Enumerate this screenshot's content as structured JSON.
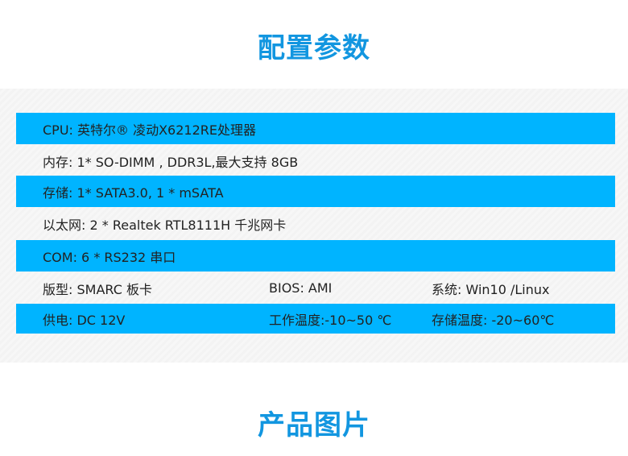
{
  "section_title": "配置参数",
  "next_section_title": "产品图片",
  "accent_color": "#00b4ff",
  "title_color": "#1296e0",
  "specs": [
    {
      "cells": [
        "CPU:  英特尔® 凌动X6212RE处理器"
      ]
    },
    {
      "cells": [
        "内存:  1* SO-DIMM , DDR3L,最大支持 8GB"
      ]
    },
    {
      "cells": [
        "存储: 1* SATA3.0, 1 * mSATA"
      ]
    },
    {
      "cells": [
        "以太网:  2 * Realtek RTL8111H 千兆网卡"
      ]
    },
    {
      "cells": [
        "COM:  6 * RS232 串口"
      ]
    },
    {
      "cells": [
        "版型: SMARC 板卡",
        "BIOS: AMI",
        "系统: Win10 /Linux"
      ]
    },
    {
      "cells": [
        "供电: DC 12V",
        "工作温度:-10~50 ℃",
        "存储温度: -20~60℃"
      ]
    }
  ]
}
